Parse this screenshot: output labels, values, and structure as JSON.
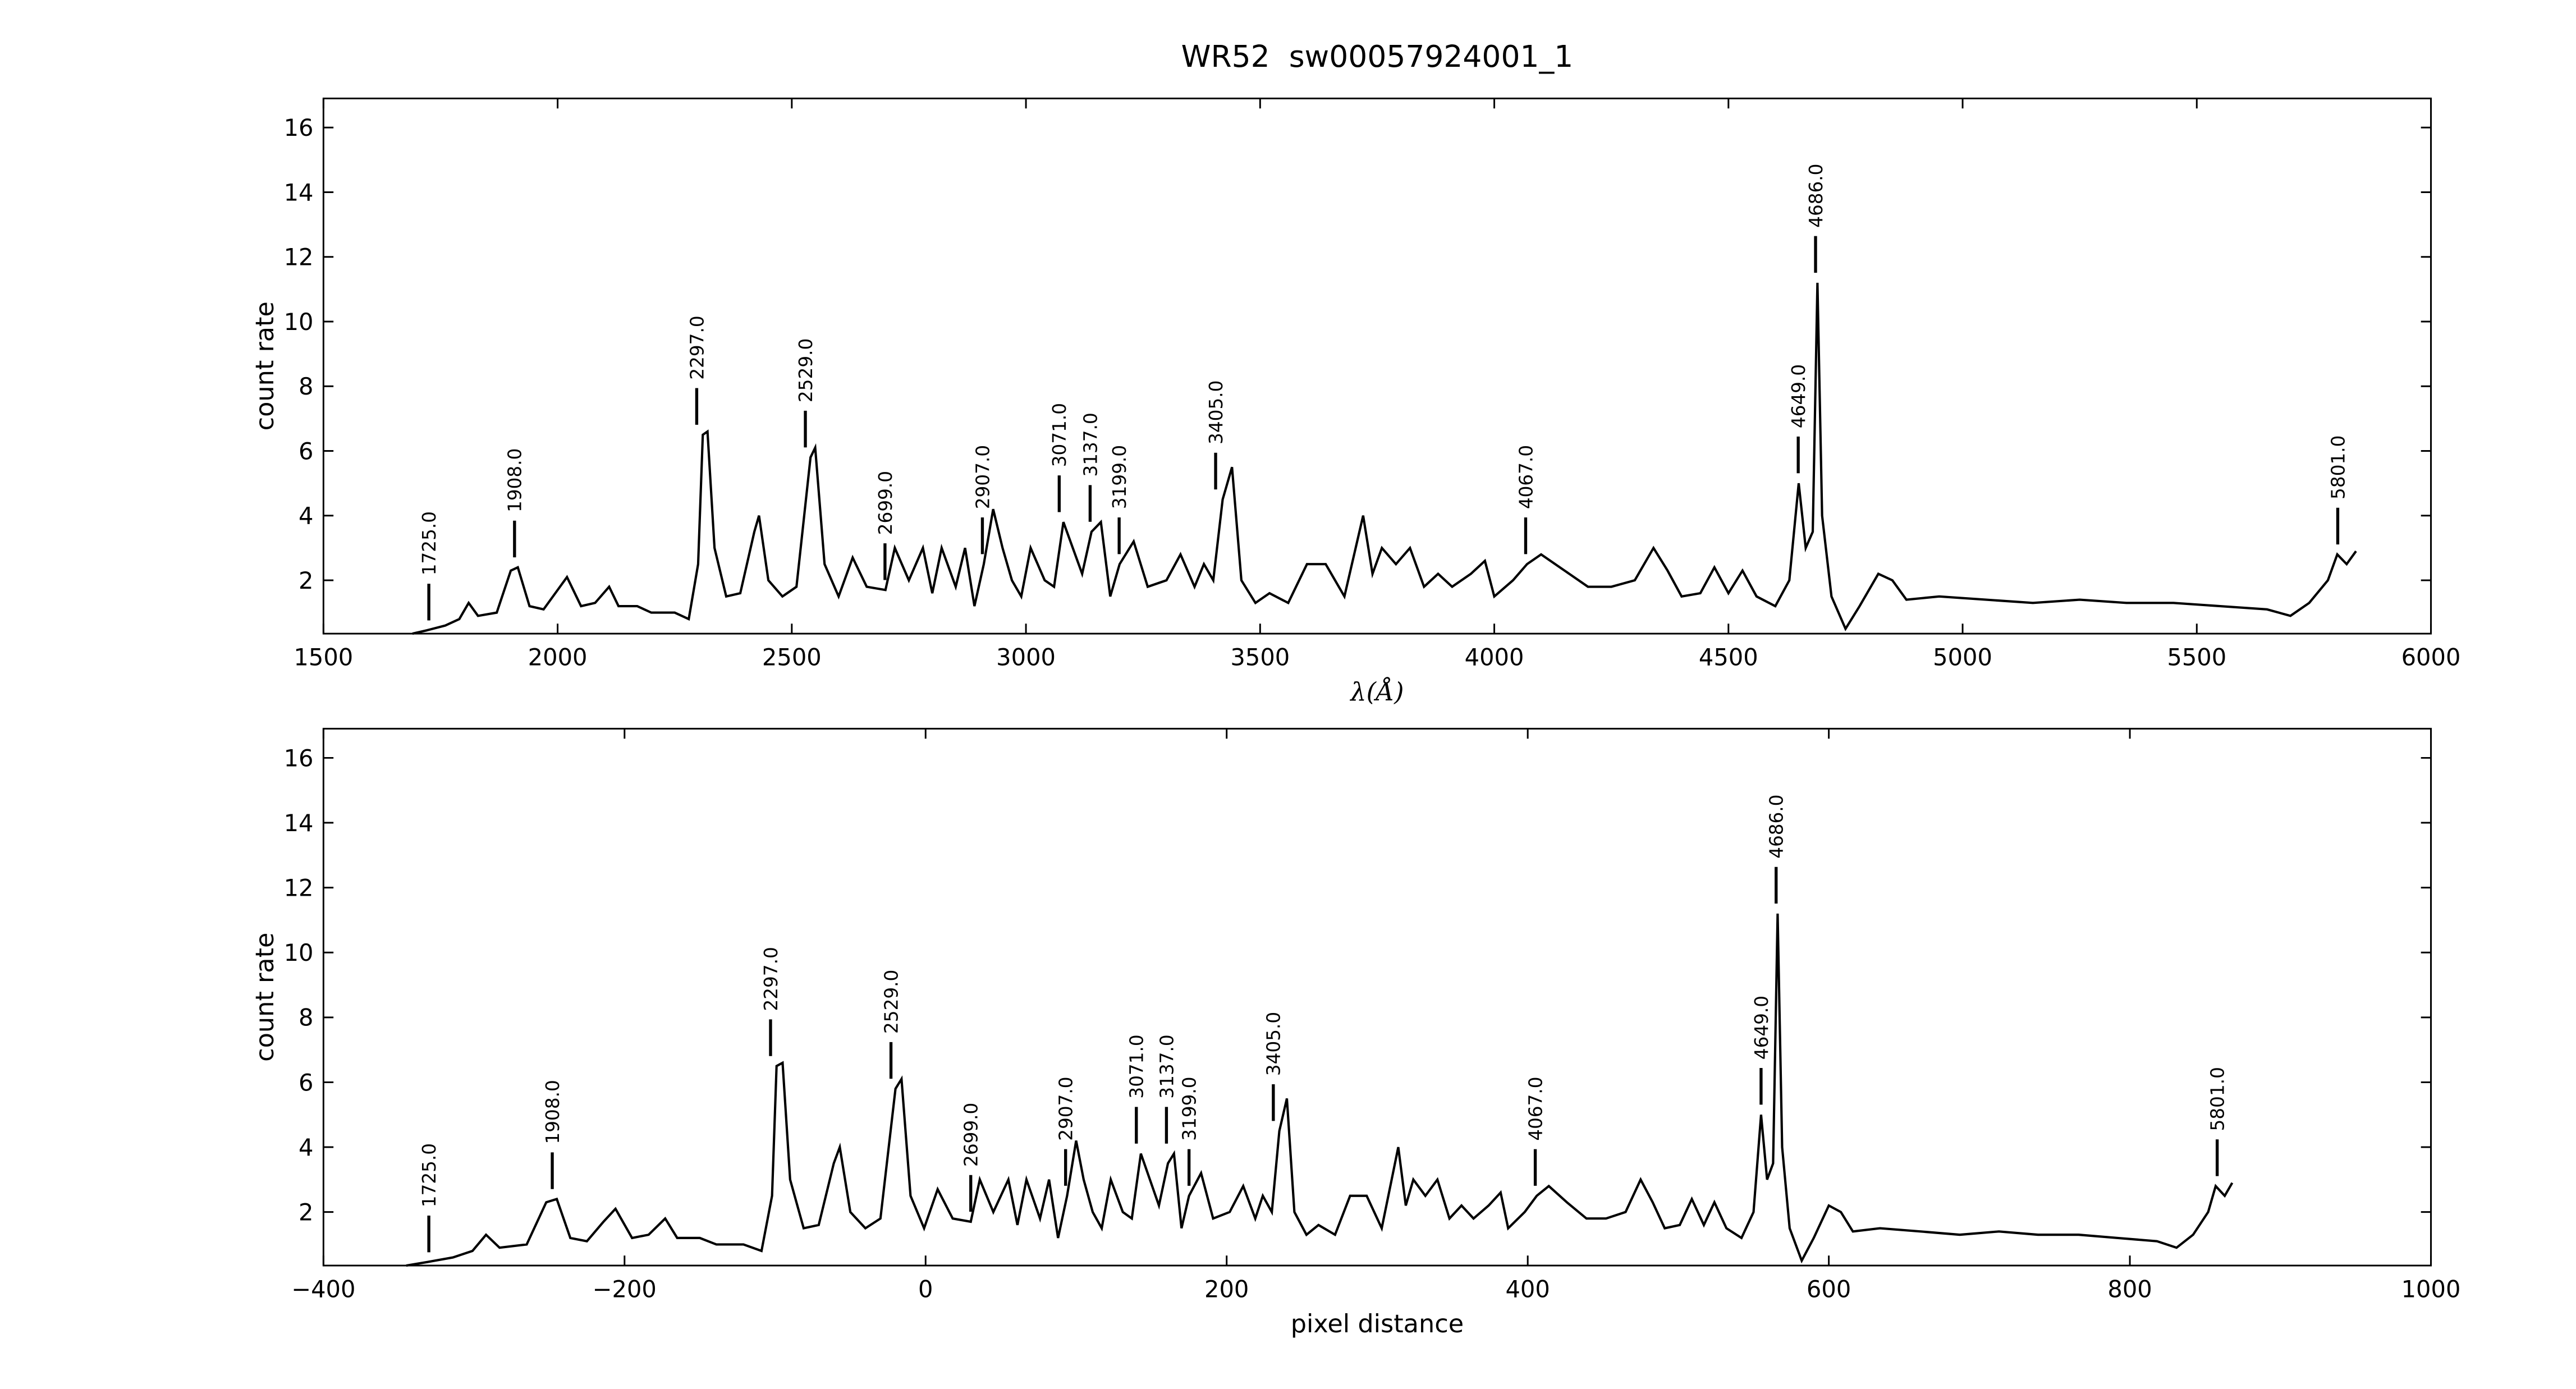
{
  "chart_data": [
    {
      "type": "line",
      "title": "WR52  sw00057924001_1",
      "xlabel": "λ(Å)",
      "ylabel": "count rate",
      "color": "#000000",
      "xlim": [
        1500,
        6000
      ],
      "xticks": [
        1500,
        2000,
        2500,
        3000,
        3500,
        4000,
        4500,
        5000,
        5500,
        6000
      ],
      "ylim": [
        0.35,
        16.9
      ],
      "yticks": [
        2,
        4,
        6,
        8,
        10,
        12,
        14,
        16
      ],
      "x": [
        1690,
        1720,
        1760,
        1790,
        1810,
        1830,
        1870,
        1900,
        1915,
        1940,
        1970,
        2000,
        2020,
        2050,
        2080,
        2110,
        2130,
        2170,
        2200,
        2250,
        2280,
        2300,
        2310,
        2320,
        2335,
        2360,
        2390,
        2420,
        2430,
        2450,
        2480,
        2510,
        2540,
        2550,
        2570,
        2600,
        2630,
        2660,
        2700,
        2720,
        2750,
        2780,
        2800,
        2820,
        2850,
        2870,
        2890,
        2910,
        2930,
        2950,
        2970,
        2990,
        3010,
        3040,
        3060,
        3080,
        3100,
        3120,
        3140,
        3160,
        3180,
        3200,
        3230,
        3260,
        3300,
        3330,
        3360,
        3380,
        3400,
        3420,
        3440,
        3460,
        3490,
        3520,
        3560,
        3600,
        3640,
        3680,
        3720,
        3740,
        3760,
        3790,
        3820,
        3850,
        3880,
        3910,
        3950,
        3980,
        4000,
        4040,
        4070,
        4100,
        4150,
        4200,
        4250,
        4300,
        4340,
        4370,
        4400,
        4440,
        4470,
        4500,
        4530,
        4560,
        4600,
        4630,
        4650,
        4665,
        4680,
        4690,
        4700,
        4720,
        4750,
        4780,
        4820,
        4850,
        4880,
        4950,
        5050,
        5150,
        5250,
        5350,
        5450,
        5550,
        5650,
        5700,
        5740,
        5780,
        5800,
        5820,
        5840
      ],
      "values": [
        0.35,
        0.45,
        0.6,
        0.8,
        1.3,
        0.9,
        1.0,
        2.3,
        2.4,
        1.2,
        1.1,
        1.7,
        2.1,
        1.2,
        1.3,
        1.8,
        1.2,
        1.2,
        1.0,
        1.0,
        0.8,
        2.5,
        6.5,
        6.6,
        3.0,
        1.5,
        1.6,
        3.5,
        4.0,
        2.0,
        1.5,
        1.8,
        5.8,
        6.1,
        2.5,
        1.5,
        2.7,
        1.8,
        1.7,
        3.0,
        2.0,
        3.0,
        1.6,
        3.0,
        1.8,
        3.0,
        1.2,
        2.5,
        4.2,
        3.0,
        2.0,
        1.5,
        3.0,
        2.0,
        1.8,
        3.8,
        3.0,
        2.2,
        3.5,
        3.8,
        1.5,
        2.5,
        3.2,
        1.8,
        2.0,
        2.8,
        1.8,
        2.5,
        2.0,
        4.5,
        5.5,
        2.0,
        1.3,
        1.6,
        1.3,
        2.5,
        2.5,
        1.5,
        4.0,
        2.2,
        3.0,
        2.5,
        3.0,
        1.8,
        2.2,
        1.8,
        2.2,
        2.6,
        1.5,
        2.0,
        2.5,
        2.8,
        2.3,
        1.8,
        1.8,
        2.0,
        3.0,
        2.3,
        1.5,
        1.6,
        2.4,
        1.6,
        2.3,
        1.5,
        1.2,
        2.0,
        5.0,
        3.0,
        3.5,
        11.2,
        4.0,
        1.5,
        0.5,
        1.2,
        2.2,
        2.0,
        1.4,
        1.5,
        1.4,
        1.3,
        1.4,
        1.3,
        1.3,
        1.2,
        1.1,
        0.9,
        1.3,
        2.0,
        2.8,
        2.5,
        2.9
      ],
      "annotations": [
        {
          "x": 1725,
          "label": "1725.0"
        },
        {
          "x": 1908,
          "label": "1908.0"
        },
        {
          "x": 2297,
          "label": "2297.0"
        },
        {
          "x": 2529,
          "label": "2529.0"
        },
        {
          "x": 2699,
          "label": "2699.0"
        },
        {
          "x": 2907,
          "label": "2907.0"
        },
        {
          "x": 3071,
          "label": "3071.0"
        },
        {
          "x": 3137,
          "label": "3137.0"
        },
        {
          "x": 3199,
          "label": "3199.0"
        },
        {
          "x": 3405,
          "label": "3405.0"
        },
        {
          "x": 4067,
          "label": "4067.0"
        },
        {
          "x": 4649,
          "label": "4649.0"
        },
        {
          "x": 4686,
          "label": "4686.0"
        },
        {
          "x": 5801,
          "label": "5801.0"
        }
      ]
    },
    {
      "type": "line",
      "xlabel": "pixel distance",
      "ylabel": "count rate",
      "color": "#000000",
      "xlim": [
        -400,
        1000
      ],
      "xticks": [
        {
          "value": -400,
          "label": "−400"
        },
        {
          "value": -200,
          "label": "−200"
        },
        0,
        200,
        400,
        600,
        800,
        1000
      ],
      "ylim": [
        0.35,
        16.9
      ],
      "yticks": [
        2,
        4,
        6,
        8,
        10,
        12,
        14,
        16
      ],
      "x": [
        -345,
        -332,
        -314,
        -301,
        -292,
        -283,
        -265,
        -252,
        -245,
        -236,
        -225,
        -214,
        -206,
        -195,
        -184,
        -173,
        -165,
        -150,
        -139,
        -121,
        -109,
        -102,
        -99,
        -95,
        -90,
        -81,
        -71,
        -61,
        -57,
        -50,
        -40,
        -30,
        -20,
        -16,
        -10,
        -1,
        8,
        18,
        30,
        36,
        45,
        55,
        61,
        67,
        76,
        82,
        88,
        94,
        100,
        105,
        111,
        117,
        123,
        131,
        137,
        143,
        149,
        155,
        161,
        165,
        170,
        175,
        183,
        191,
        202,
        211,
        219,
        224,
        230,
        235,
        240,
        245,
        253,
        261,
        272,
        282,
        293,
        303,
        314,
        319,
        324,
        332,
        340,
        348,
        356,
        364,
        374,
        382,
        387,
        398,
        406,
        414,
        426,
        439,
        452,
        465,
        475,
        483,
        491,
        501,
        509,
        517,
        524,
        532,
        542,
        550,
        555,
        559,
        563,
        566,
        569,
        574,
        582,
        590,
        600,
        608,
        616,
        634,
        661,
        687,
        713,
        739,
        766,
        792,
        818,
        831,
        842,
        852,
        857,
        863,
        868
      ],
      "values": [
        0.35,
        0.45,
        0.6,
        0.8,
        1.3,
        0.9,
        1.0,
        2.3,
        2.4,
        1.2,
        1.1,
        1.7,
        2.1,
        1.2,
        1.3,
        1.8,
        1.2,
        1.2,
        1.0,
        1.0,
        0.8,
        2.5,
        6.5,
        6.6,
        3.0,
        1.5,
        1.6,
        3.5,
        4.0,
        2.0,
        1.5,
        1.8,
        5.8,
        6.1,
        2.5,
        1.5,
        2.7,
        1.8,
        1.7,
        3.0,
        2.0,
        3.0,
        1.6,
        3.0,
        1.8,
        3.0,
        1.2,
        2.5,
        4.2,
        3.0,
        2.0,
        1.5,
        3.0,
        2.0,
        1.8,
        3.8,
        3.0,
        2.2,
        3.5,
        3.8,
        1.5,
        2.5,
        3.2,
        1.8,
        2.0,
        2.8,
        1.8,
        2.5,
        2.0,
        4.5,
        5.5,
        2.0,
        1.3,
        1.6,
        1.3,
        2.5,
        2.5,
        1.5,
        4.0,
        2.2,
        3.0,
        2.5,
        3.0,
        1.8,
        2.2,
        1.8,
        2.2,
        2.6,
        1.5,
        2.0,
        2.5,
        2.8,
        2.3,
        1.8,
        1.8,
        2.0,
        3.0,
        2.3,
        1.5,
        1.6,
        2.4,
        1.6,
        2.3,
        1.5,
        1.2,
        2.0,
        5.0,
        3.0,
        3.5,
        11.2,
        4.0,
        1.5,
        0.5,
        1.2,
        2.2,
        2.0,
        1.4,
        1.5,
        1.4,
        1.3,
        1.4,
        1.3,
        1.3,
        1.2,
        1.1,
        0.9,
        1.3,
        2.0,
        2.8,
        2.5,
        2.9
      ],
      "annotations": [
        {
          "x": -330,
          "label": "1725.0"
        },
        {
          "x": -248,
          "label": "1908.0"
        },
        {
          "x": -103,
          "label": "2297.0"
        },
        {
          "x": -23,
          "label": "2529.0"
        },
        {
          "x": 30,
          "label": "2699.0"
        },
        {
          "x": 93,
          "label": "2907.0"
        },
        {
          "x": 140,
          "label": "3071.0"
        },
        {
          "x": 160,
          "label": "3137.0"
        },
        {
          "x": 175,
          "label": "3199.0"
        },
        {
          "x": 231,
          "label": "3405.0"
        },
        {
          "x": 405,
          "label": "4067.0"
        },
        {
          "x": 555,
          "label": "4649.0"
        },
        {
          "x": 565,
          "label": "4686.0"
        },
        {
          "x": 858,
          "label": "5801.0"
        }
      ]
    }
  ]
}
